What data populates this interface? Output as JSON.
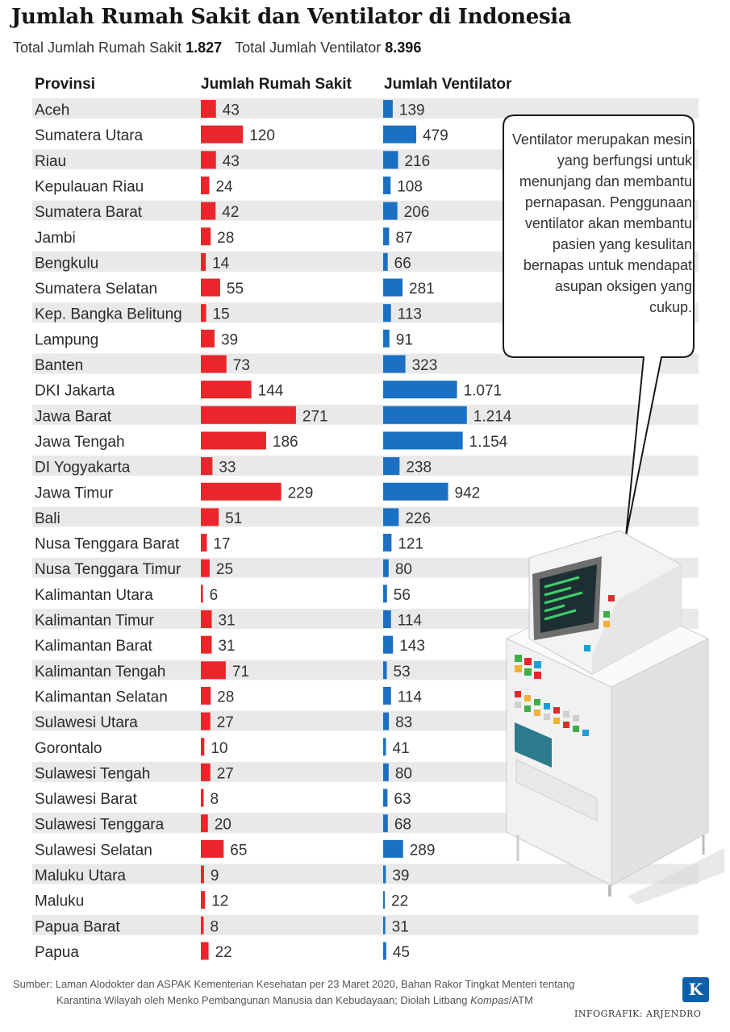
{
  "title": "Jumlah Rumah Sakit dan Ventilator di Indonesia",
  "totals": {
    "hospital_label": "Total Jumlah Rumah Sakit",
    "hospital_value": "1.827",
    "ventilator_label": "Total Jumlah Ventilator",
    "ventilator_value": "8.396"
  },
  "headers": {
    "province": "Provinsi",
    "hospitals": "Jumlah Rumah Sakit",
    "ventilators": "Jumlah Ventilator"
  },
  "callout": "Ventilator merupakan mesin yang berfungsi untuk menunjang dan membantu pernapasan. Penggunaan ventilator akan membantu pasien yang kesulitan bernapas untuk mendapat asupan oksigen yang cukup.",
  "source": {
    "line1": "Sumber: Laman Alodokter dan ASPAK Kementerian Kesehatan per 23 Maret 2020, Bahan Rakor Tingkat Menteri tentang",
    "line2_a": "Karantina Wilayah oleh Menko Pembangunan Manusia dan Kebudayaan; Diolah Litbang ",
    "line2_italic": "Kompas",
    "line2_b": "/ATM"
  },
  "logo_letter": "K",
  "credit": "INFOGRAFIK: ARJENDRO",
  "colors": {
    "hospital_bar": "#e8262b",
    "ventilator_bar": "#1b70c4",
    "row_stripe": "#e9e9e9"
  },
  "chart_data": {
    "type": "bar",
    "categories": [
      "Aceh",
      "Sumatera Utara",
      "Riau",
      "Kepulauan Riau",
      "Sumatera Barat",
      "Jambi",
      "Bengkulu",
      "Sumatera Selatan",
      "Kep. Bangka Belitung",
      "Lampung",
      "Banten",
      "DKI Jakarta",
      "Jawa Barat",
      "Jawa Tengah",
      "DI Yogyakarta",
      "Jawa Timur",
      "Bali",
      "Nusa Tenggara Barat",
      "Nusa Tenggara Timur",
      "Kalimantan Utara",
      "Kalimantan Timur",
      "Kalimantan Barat",
      "Kalimantan Tengah",
      "Kalimantan Selatan",
      "Sulawesi Utara",
      "Gorontalo",
      "Sulawesi Tengah",
      "Sulawesi Barat",
      "Sulawesi Tenggara",
      "Sulawesi Selatan",
      "Maluku Utara",
      "Maluku",
      "Papua Barat",
      "Papua"
    ],
    "series": [
      {
        "name": "Jumlah Rumah Sakit",
        "values": [
          43,
          120,
          43,
          24,
          42,
          28,
          14,
          55,
          15,
          39,
          73,
          144,
          271,
          186,
          33,
          229,
          51,
          17,
          25,
          6,
          31,
          31,
          71,
          28,
          27,
          10,
          27,
          8,
          20,
          65,
          9,
          12,
          8,
          22
        ],
        "labels": [
          "43",
          "120",
          "43",
          "24",
          "42",
          "28",
          "14",
          "55",
          "15",
          "39",
          "73",
          "144",
          "271",
          "186",
          "33",
          "229",
          "51",
          "17",
          "25",
          "6",
          "31",
          "31",
          "71",
          "28",
          "27",
          "10",
          "27",
          "8",
          "20",
          "65",
          "9",
          "12",
          "8",
          "22"
        ]
      },
      {
        "name": "Jumlah Ventilator",
        "values": [
          139,
          479,
          216,
          108,
          206,
          87,
          66,
          281,
          113,
          91,
          323,
          1071,
          1214,
          1154,
          238,
          942,
          226,
          121,
          80,
          56,
          114,
          143,
          53,
          114,
          83,
          41,
          80,
          63,
          68,
          289,
          39,
          22,
          31,
          45
        ],
        "labels": [
          "139",
          "479",
          "216",
          "108",
          "206",
          "87",
          "66",
          "281",
          "113",
          "91",
          "323",
          "1.071",
          "1.214",
          "1.154",
          "238",
          "942",
          "226",
          "121",
          "80",
          "56",
          "114",
          "143",
          "53",
          "114",
          "83",
          "41",
          "80",
          "63",
          "68",
          "289",
          "39",
          "22",
          "31",
          "45"
        ]
      }
    ]
  }
}
